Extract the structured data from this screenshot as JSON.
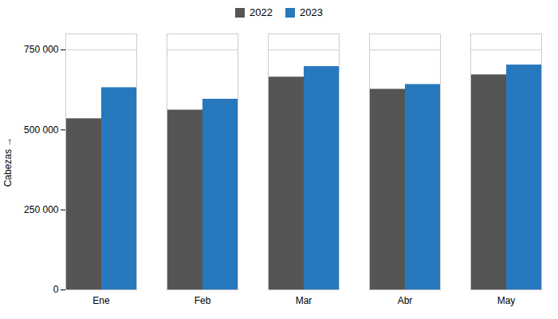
{
  "chart_data": {
    "type": "bar",
    "categories": [
      "Ene",
      "Feb",
      "Mar",
      "Abr",
      "May"
    ],
    "series": [
      {
        "name": "2022",
        "color": "#555555",
        "values": [
          535000,
          562000,
          665000,
          627000,
          672000
        ]
      },
      {
        "name": "2023",
        "color": "#2878be",
        "values": [
          632000,
          596000,
          698000,
          642000,
          703000
        ]
      }
    ],
    "ylabel": "Cabezas",
    "ylim": [
      0,
      800000
    ],
    "yticks": [
      0,
      {
        "value": 250000,
        "label": "250 000"
      },
      {
        "value": 500000,
        "label": "500 000"
      },
      {
        "value": 750000,
        "label": "750 000"
      }
    ],
    "grid": true,
    "legend": "top"
  }
}
